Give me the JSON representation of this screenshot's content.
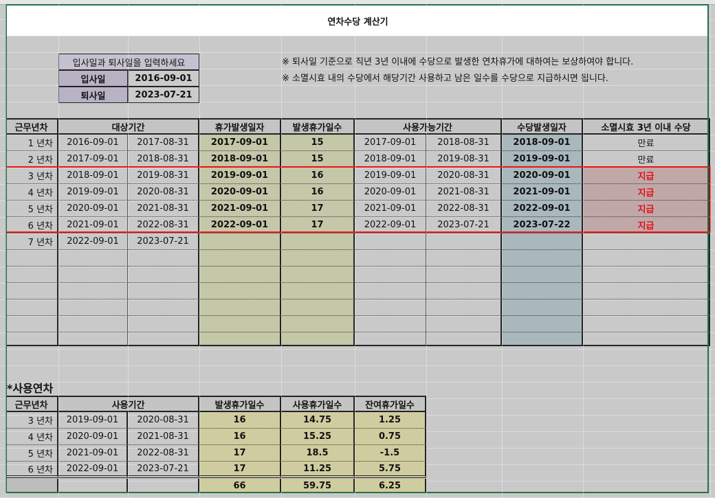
{
  "title": "연차수당 계산기",
  "input_box": {
    "header": "입사일과 퇴사일을 입력하세요",
    "hire_label": "입사일",
    "hire_date": "2016-09-01",
    "leave_label": "퇴사일",
    "leave_date": "2023-07-21"
  },
  "notes": [
    "※ 퇴사일 기준으로 직년 3년 이내에 수당으로 발생한 연차휴가에 대하여는 보상하여야 합니다.",
    "※ 소멸시효 내의 수당에서 해당기간 사용하고 남은 일수를 수당으로 지급하시면 됩니다."
  ],
  "main_table": {
    "headers": [
      "근무년차",
      "대상기간",
      "휴가발생일자",
      "발생휴가일수",
      "사용가능기간",
      "수당발생일자",
      "소멸시효 3년 이내 수당"
    ],
    "rows": [
      [
        "1 년차",
        "2016-09-01",
        "2017-08-31",
        "2017-09-01",
        "15",
        "2017-09-01",
        "2018-08-31",
        "2018-09-01",
        "만료"
      ],
      [
        "2 년차",
        "2017-09-01",
        "2018-08-31",
        "2018-09-01",
        "15",
        "2018-09-01",
        "2019-08-31",
        "2019-09-01",
        "만료"
      ],
      [
        "3 년차",
        "2018-09-01",
        "2019-08-31",
        "2019-09-01",
        "16",
        "2019-09-01",
        "2020-08-31",
        "2020-09-01",
        "지급"
      ],
      [
        "4 년차",
        "2019-09-01",
        "2020-08-31",
        "2020-09-01",
        "16",
        "2020-09-01",
        "2021-08-31",
        "2021-09-01",
        "지급"
      ],
      [
        "5 년차",
        "2020-09-01",
        "2021-08-31",
        "2021-09-01",
        "17",
        "2021-09-01",
        "2022-08-31",
        "2022-09-01",
        "지급"
      ],
      [
        "6 년차",
        "2021-09-01",
        "2022-08-31",
        "2022-09-01",
        "17",
        "2022-09-01",
        "2023-07-21",
        "2023-07-22",
        "지급"
      ],
      [
        "7 년차",
        "2022-09-01",
        "2023-07-21",
        "",
        "",
        "",
        "",
        "",
        ""
      ]
    ],
    "highlight_status": "지급"
  },
  "used_leave": {
    "title": "*사용연차",
    "headers": [
      "근무년차",
      "사용기간",
      "발생휴가일수",
      "사용휴가일수",
      "잔여휴가일수"
    ],
    "rows": [
      [
        "3 년차",
        "2019-09-01",
        "2020-08-31",
        "16",
        "14.75",
        "1.25"
      ],
      [
        "4 년차",
        "2020-09-01",
        "2021-08-31",
        "16",
        "15.25",
        "0.75"
      ],
      [
        "5 년차",
        "2021-09-01",
        "2022-08-31",
        "17",
        "18.5",
        "-1.5"
      ],
      [
        "6 년차",
        "2022-09-01",
        "2023-07-21",
        "17",
        "11.25",
        "5.75"
      ]
    ],
    "totals": [
      "",
      "",
      "",
      "66",
      "59.75",
      "6.25"
    ]
  },
  "colors": {
    "grant_col": "#c4c7a8",
    "pay_col": "#a9b8bd",
    "paid_fill": "#c1a8a8",
    "paid_text": "#e0101a",
    "input_header": "#c6c1d0",
    "input_label": "#b8b2c5",
    "used_fill": "#cfcd9f",
    "frame": "#217346"
  }
}
